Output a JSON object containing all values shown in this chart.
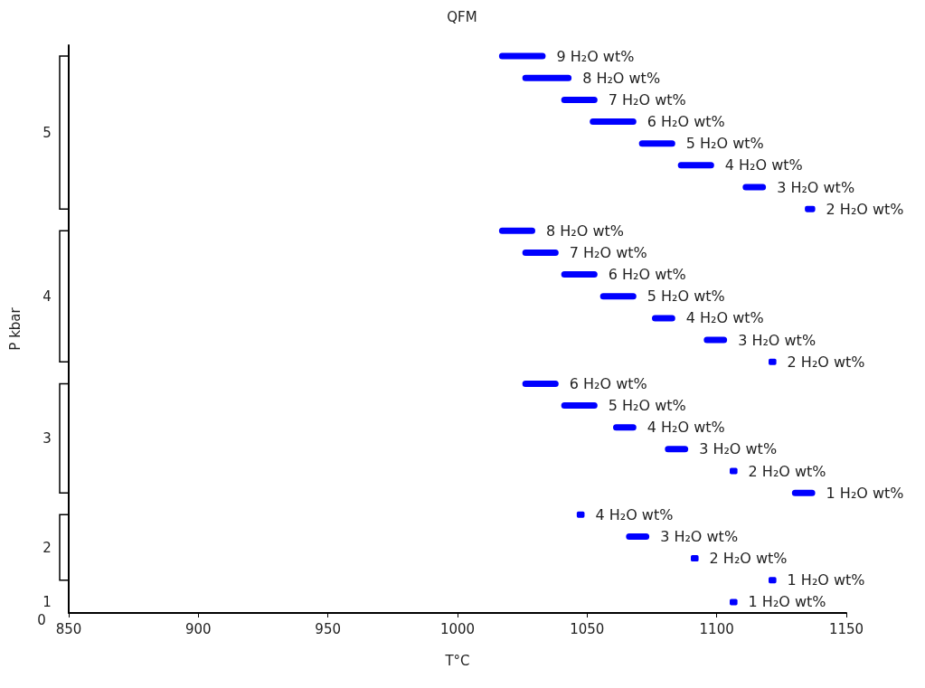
{
  "chart_data": {
    "type": "bar",
    "orientation": "horizontal",
    "title": "QFM",
    "xlabel": "T°C",
    "ylabel": "P kbar",
    "xlim": [
      850,
      1150
    ],
    "xticks": [
      850,
      900,
      950,
      1000,
      1050,
      1100,
      1150
    ],
    "grid": false,
    "annotations": [
      "5",
      "4",
      "3",
      "2",
      "1",
      "0"
    ],
    "categories": [
      "9 H₂O wt%",
      "8 H₂O wt%",
      "7 H₂O wt%",
      "6 H₂O wt%",
      "5 H₂O wt%",
      "4 H₂O wt%",
      "3 H₂O wt%",
      "2 H₂O wt%",
      "8 H₂O wt%",
      "7 H₂O wt%",
      "6 H₂O wt%",
      "5 H₂O wt%",
      "4 H₂O wt%",
      "3 H₂O wt%",
      "2 H₂O wt%",
      "6 H₂O wt%",
      "5 H₂O wt%",
      "4 H₂O wt%",
      "3 H₂O wt%",
      "2 H₂O wt%",
      "1 H₂O wt%",
      "4 H₂O wt%",
      "3 H₂O wt%",
      "2 H₂O wt%",
      "1 H₂O wt%",
      "1 H₂O wt%"
    ],
    "series": [
      {
        "color": "#0000ff",
        "base": [
          1016,
          1025,
          1040,
          1051,
          1070,
          1085,
          1110,
          1134,
          null,
          null,
          null,
          null,
          null,
          null,
          null,
          null,
          null,
          null,
          null,
          null,
          null,
          null,
          null,
          null,
          null,
          null
        ],
        "values": [
          18,
          19,
          14,
          18,
          14,
          14,
          9,
          4,
          null,
          null,
          null,
          null,
          null,
          null,
          null,
          null,
          null,
          null,
          null,
          null,
          null,
          null,
          null,
          null,
          null,
          null
        ]
      },
      {
        "color": "#0000ff",
        "base": [
          null,
          null,
          null,
          null,
          null,
          null,
          null,
          null,
          1016,
          1025,
          1040,
          1055,
          1075,
          1095,
          1120,
          null,
          null,
          null,
          null,
          null,
          null,
          null,
          null,
          null,
          null,
          null
        ],
        "values": [
          null,
          null,
          null,
          null,
          null,
          null,
          null,
          null,
          14,
          14,
          14,
          14,
          9,
          9,
          3,
          null,
          null,
          null,
          null,
          null,
          null,
          null,
          null,
          null,
          null,
          null
        ]
      },
      {
        "color": "#0000ff",
        "base": [
          null,
          null,
          null,
          null,
          null,
          null,
          null,
          null,
          null,
          null,
          null,
          null,
          null,
          null,
          null,
          1025,
          1040,
          1060,
          1080,
          1105,
          1129,
          null,
          null,
          null,
          null,
          null
        ],
        "values": [
          null,
          null,
          null,
          null,
          null,
          null,
          null,
          null,
          null,
          null,
          null,
          null,
          null,
          null,
          null,
          14,
          14,
          9,
          9,
          3,
          9,
          null,
          null,
          null,
          null,
          null
        ]
      },
      {
        "color": "#0000ff",
        "base": [
          null,
          null,
          null,
          null,
          null,
          null,
          null,
          null,
          null,
          null,
          null,
          null,
          null,
          null,
          null,
          null,
          null,
          null,
          null,
          null,
          null,
          1046,
          1065,
          1090,
          1120,
          null
        ],
        "values": [
          null,
          null,
          null,
          null,
          null,
          null,
          null,
          null,
          null,
          null,
          null,
          null,
          null,
          null,
          null,
          null,
          null,
          null,
          null,
          null,
          null,
          3,
          9,
          3,
          3,
          null
        ]
      },
      {
        "color": "#0000ff",
        "base": [
          null,
          null,
          null,
          null,
          null,
          null,
          null,
          null,
          null,
          null,
          null,
          null,
          null,
          null,
          null,
          null,
          null,
          null,
          null,
          null,
          null,
          null,
          null,
          null,
          null,
          1105
        ],
        "values": [
          null,
          null,
          null,
          null,
          null,
          null,
          null,
          null,
          null,
          null,
          null,
          null,
          null,
          null,
          null,
          null,
          null,
          null,
          null,
          null,
          null,
          null,
          null,
          null,
          null,
          3
        ]
      }
    ]
  }
}
